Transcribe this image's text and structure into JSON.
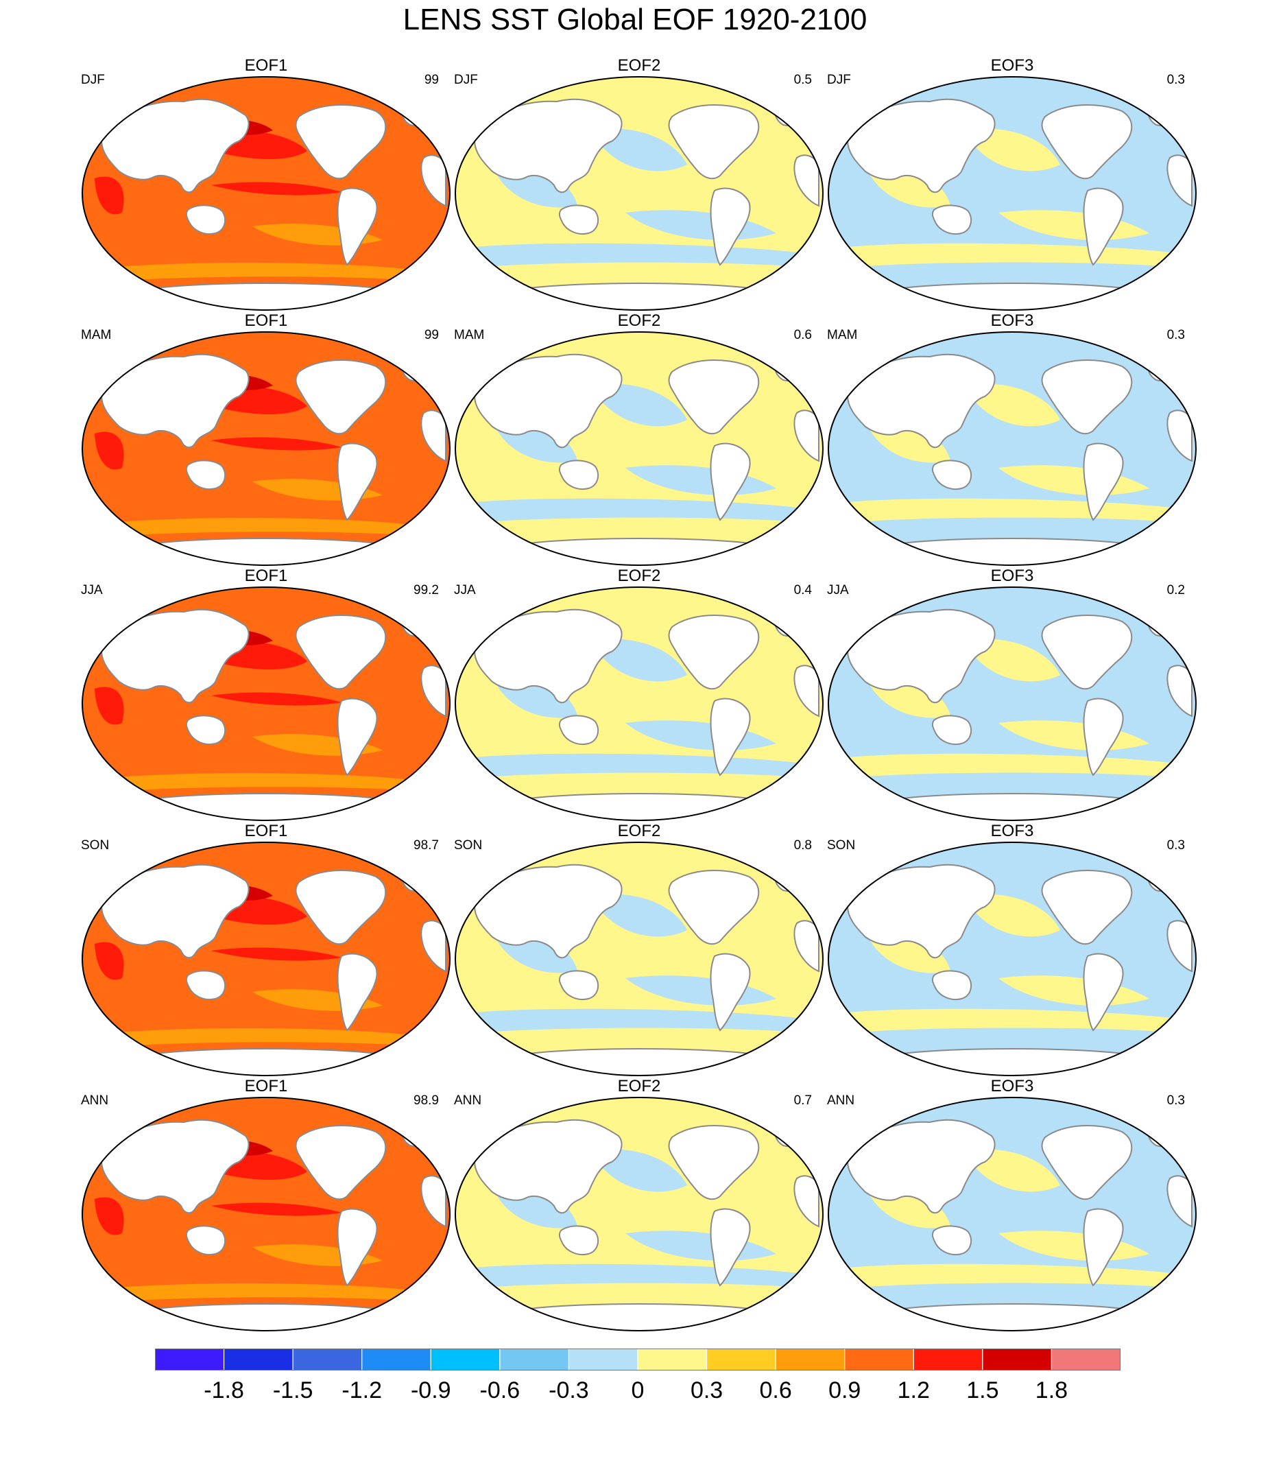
{
  "title": "LENS SST Global EOF 1920-2100",
  "columns": [
    "EOF1",
    "EOF2",
    "EOF3"
  ],
  "rows": [
    {
      "season": "DJF",
      "panels": [
        {
          "eof": "EOF1",
          "percent": "99",
          "pattern": "warm",
          "fill": "#ff6a13"
        },
        {
          "eof": "EOF2",
          "percent": "0.5",
          "pattern": "mixed",
          "fill": "#fff68c"
        },
        {
          "eof": "EOF3",
          "percent": "0.3",
          "pattern": "mixed",
          "fill": "#b6e0f7"
        }
      ]
    },
    {
      "season": "MAM",
      "panels": [
        {
          "eof": "EOF1",
          "percent": "99",
          "pattern": "warm",
          "fill": "#ff6a13"
        },
        {
          "eof": "EOF2",
          "percent": "0.6",
          "pattern": "mixed",
          "fill": "#fff68c"
        },
        {
          "eof": "EOF3",
          "percent": "0.3",
          "pattern": "mixed",
          "fill": "#b6e0f7"
        }
      ]
    },
    {
      "season": "JJA",
      "panels": [
        {
          "eof": "EOF1",
          "percent": "99.2",
          "pattern": "warm",
          "fill": "#ff6a13"
        },
        {
          "eof": "EOF2",
          "percent": "0.4",
          "pattern": "mixed",
          "fill": "#fff68c"
        },
        {
          "eof": "EOF3",
          "percent": "0.2",
          "pattern": "mixed",
          "fill": "#b6e0f7"
        }
      ]
    },
    {
      "season": "SON",
      "panels": [
        {
          "eof": "EOF1",
          "percent": "98.7",
          "pattern": "warm",
          "fill": "#ff6a13"
        },
        {
          "eof": "EOF2",
          "percent": "0.8",
          "pattern": "mixed",
          "fill": "#fff68c"
        },
        {
          "eof": "EOF3",
          "percent": "0.3",
          "pattern": "mixed",
          "fill": "#b6e0f7"
        }
      ]
    },
    {
      "season": "ANN",
      "panels": [
        {
          "eof": "EOF1",
          "percent": "98.9",
          "pattern": "warm",
          "fill": "#ff6a13"
        },
        {
          "eof": "EOF2",
          "percent": "0.7",
          "pattern": "mixed",
          "fill": "#fff68c"
        },
        {
          "eof": "EOF3",
          "percent": "0.3",
          "pattern": "mixed",
          "fill": "#b6e0f7"
        }
      ]
    }
  ],
  "colorbar": {
    "colors": [
      "#3d1aff",
      "#1a2ee6",
      "#3a66e0",
      "#1f8cf5",
      "#00bfff",
      "#73c7f2",
      "#b6e0f7",
      "#fff68c",
      "#ffcc21",
      "#ff9e0a",
      "#ff6a13",
      "#ff1a0a",
      "#d40000",
      "#f07878"
    ],
    "labels": [
      "-1.8",
      "-1.5",
      "-1.2",
      "-0.9",
      "-0.6",
      "-0.3",
      "0",
      "0.3",
      "0.6",
      "0.9",
      "1.2",
      "1.5",
      "1.8"
    ]
  },
  "palette": {
    "land": "#ffffff",
    "coast": "#8a8a8a",
    "frame": "#000000",
    "warm_light": "#ff9e0a",
    "warm_dark": "#ff1a0a",
    "warm_darkest": "#d40000",
    "cool": "#b6e0f7",
    "warm_weak": "#fff68c"
  }
}
